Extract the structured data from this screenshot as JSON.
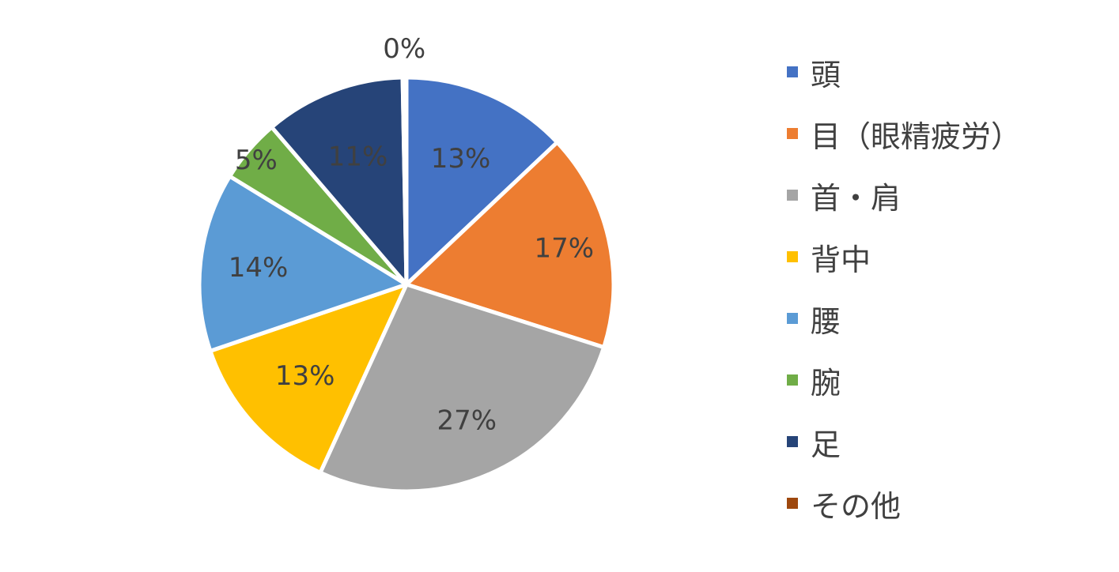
{
  "chart_data": {
    "type": "pie",
    "categories": [
      "頭",
      "目（眼精疲労）",
      "首・肩",
      "背中",
      "腰",
      "腕",
      "足",
      "その他"
    ],
    "values": [
      13,
      17,
      27,
      13,
      14,
      5,
      11,
      0.3
    ],
    "labels": [
      "13%",
      "17%",
      "27%",
      "13%",
      "14%",
      "5%",
      "11%",
      "0%"
    ],
    "colors": [
      "#4472C4",
      "#ED7D31",
      "#A5A5A5",
      "#FFC000",
      "#5B9BD5",
      "#70AD47",
      "#264478",
      "#9E480E"
    ],
    "legend": "right"
  }
}
